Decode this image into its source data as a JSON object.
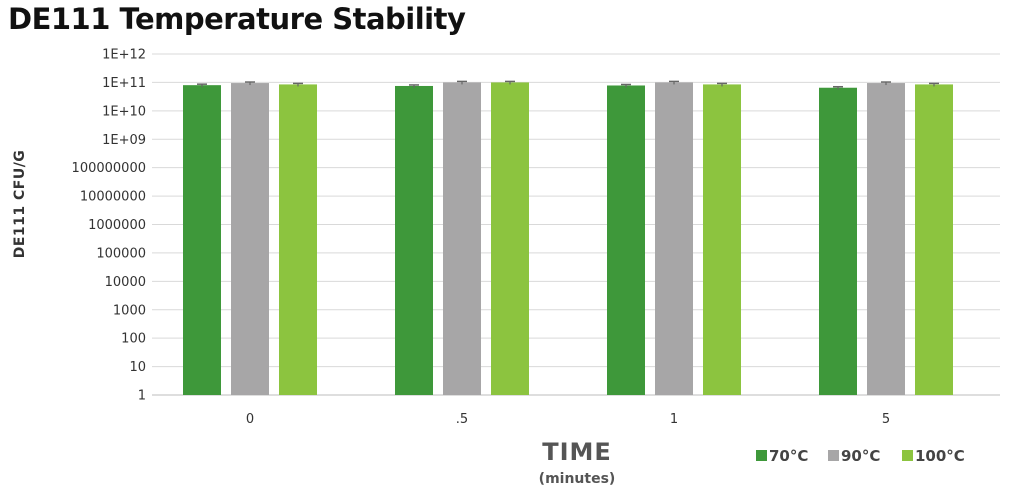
{
  "chart_data": {
    "type": "bar",
    "title": "DE111 Temperature Stability",
    "ylabel": "DE111 CFU/G",
    "xlabel": "TIME",
    "xlabel_sub": "(minutes)",
    "y_scale": "log10",
    "ylim": [
      1,
      1000000000000
    ],
    "y_tick_labels": [
      "1E+12",
      "1E+11",
      "1E+10",
      "1E+09",
      "100000000",
      "10000000",
      "1000000",
      "100000",
      "10000",
      "1000",
      "100",
      "10",
      "1"
    ],
    "categories": [
      "0",
      ".5",
      "1",
      "5"
    ],
    "series": [
      {
        "name": "70°C",
        "color": "#3e983a",
        "values": [
          80000000000,
          75000000000,
          78000000000,
          65000000000
        ]
      },
      {
        "name": "90°C",
        "color": "#a7a6a7",
        "values": [
          95000000000,
          100000000000,
          100000000000,
          95000000000
        ]
      },
      {
        "name": "100°C",
        "color": "#8cc43f",
        "values": [
          85000000000,
          100000000000,
          85000000000,
          85000000000
        ]
      }
    ],
    "error_bars": true,
    "grid": true,
    "legend_position": "bottom-right"
  }
}
